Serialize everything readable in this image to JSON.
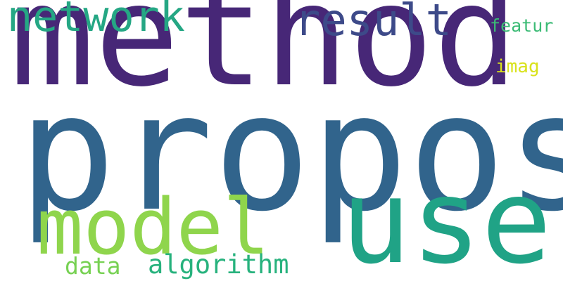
{
  "words": [
    {
      "key": "propos",
      "text": "propos",
      "color": "#31648c"
    },
    {
      "key": "method",
      "text": "method",
      "color": "#472777"
    },
    {
      "key": "use",
      "text": "use",
      "color": "#20a386"
    },
    {
      "key": "model",
      "text": "model",
      "color": "#8fd54c"
    },
    {
      "key": "network",
      "text": "network",
      "color": "#25a784"
    },
    {
      "key": "result",
      "text": "result",
      "color": "#3d4a89"
    },
    {
      "key": "algorithm",
      "text": "algorithm",
      "color": "#27b27d"
    },
    {
      "key": "data",
      "text": "data",
      "color": "#77d153"
    },
    {
      "key": "featur",
      "text": "featur",
      "color": "#3bbb75"
    },
    {
      "key": "imag",
      "text": "imag",
      "color": "#d9e21b"
    }
  ]
}
